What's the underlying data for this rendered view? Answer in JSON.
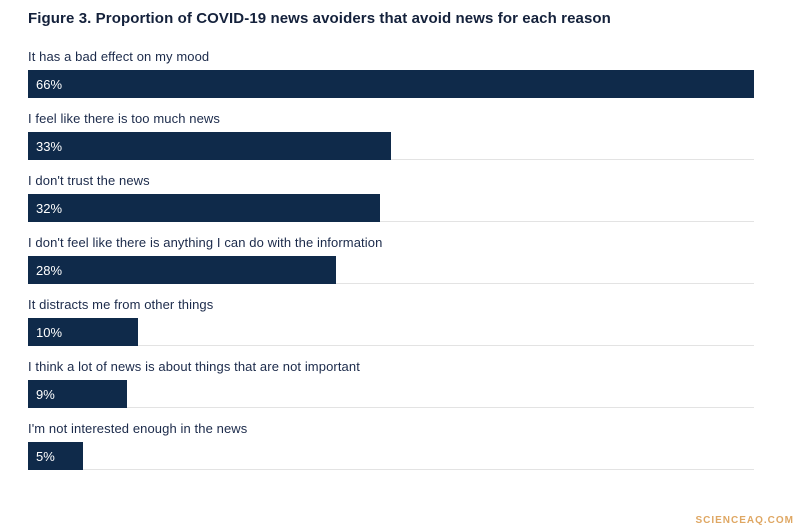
{
  "title": "Figure 3. Proportion of COVID-19 news avoiders that avoid news for each reason",
  "watermark": "SCIENCEAQ.COM",
  "colors": {
    "bar": "#0f2a4a",
    "label_text": "#1b2a4a",
    "separator_line": "#e3e3e3",
    "watermark": "#dfa763",
    "background": "#ffffff"
  },
  "chart_data": {
    "type": "bar",
    "orientation": "horizontal",
    "title": "Figure 3. Proportion of COVID-19 news avoiders that avoid news for each reason",
    "categories": [
      "It has a bad effect on my mood",
      "I feel like there is too much news",
      "I don't trust the news",
      "I don't feel like there is anything I can do with the information",
      "It distracts me from other things",
      "I think a lot of news is about things that are not important",
      "I'm not interested enough in the news"
    ],
    "values": [
      66,
      33,
      32,
      28,
      10,
      9,
      5
    ],
    "value_labels": [
      "66%",
      "33%",
      "32%",
      "28%",
      "10%",
      "9%",
      "5%"
    ],
    "xlabel": "",
    "ylabel": "",
    "xlim": [
      0,
      66
    ],
    "grid": "row-separator-lines-only",
    "legend": "none",
    "value_label_position": "inside-bar-left"
  }
}
